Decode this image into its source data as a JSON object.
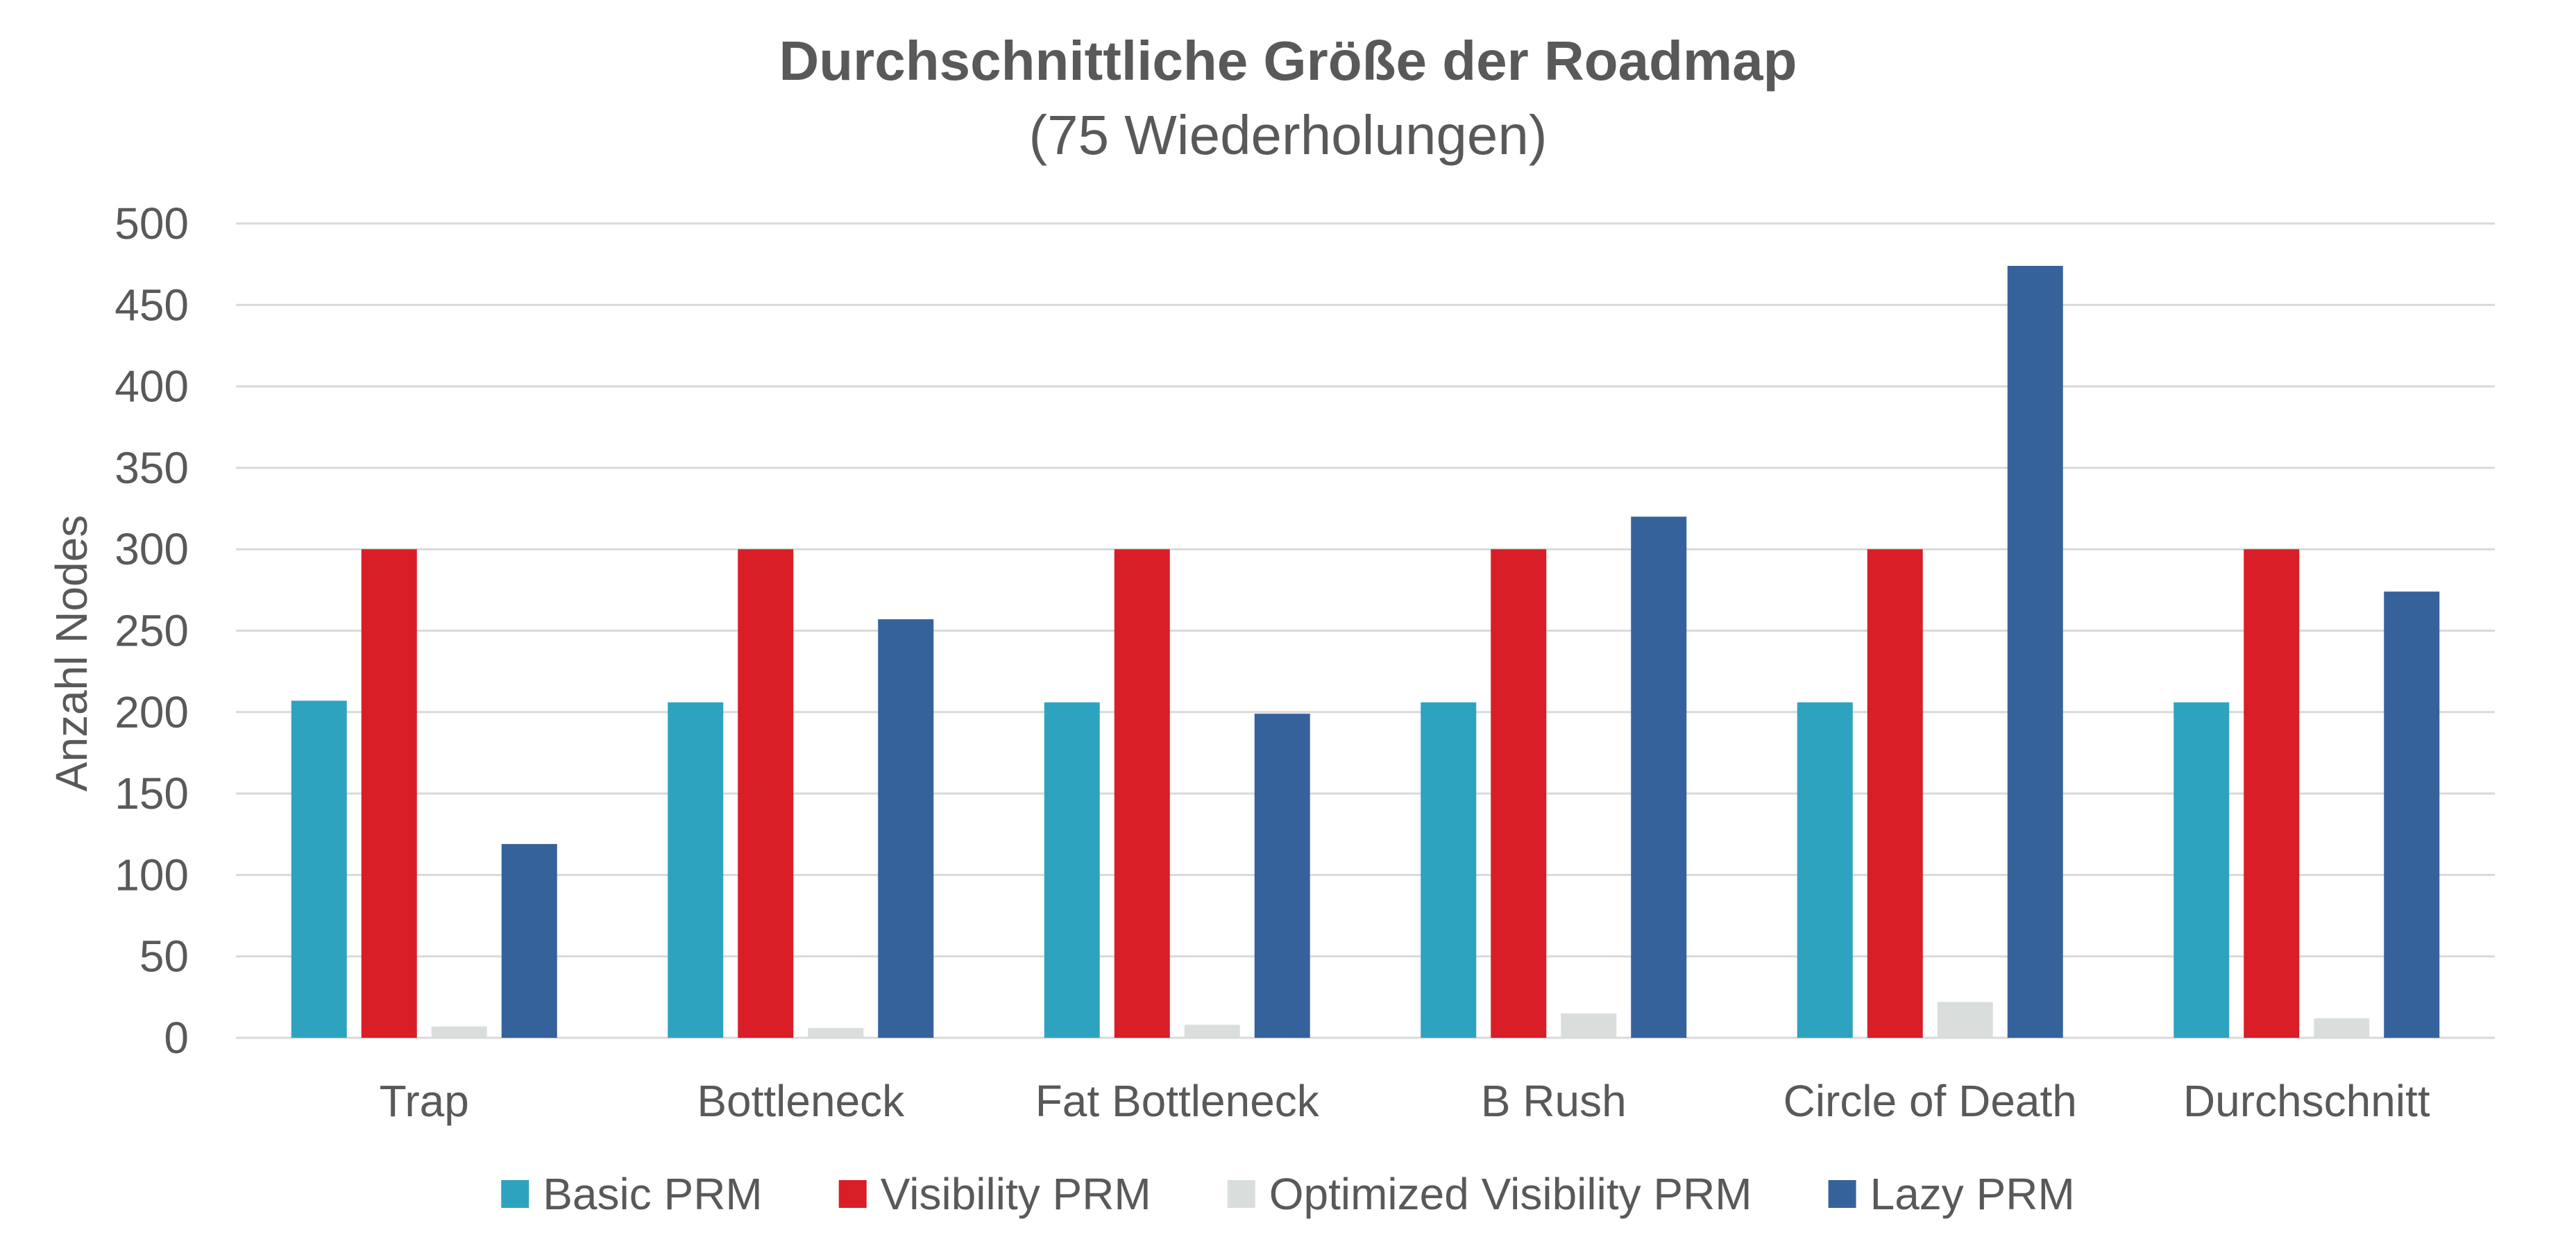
{
  "chart_data": {
    "type": "bar",
    "title": "Durchschnittliche Größe der Roadmap",
    "subtitle": "(75 Wiederholungen)",
    "xlabel": "",
    "ylabel": "Anzahl Nodes",
    "ylim": [
      0,
      500
    ],
    "yticks": [
      0,
      50,
      100,
      150,
      200,
      250,
      300,
      350,
      400,
      450,
      500
    ],
    "grid": true,
    "legend_position": "bottom",
    "categories": [
      "Trap",
      "Bottleneck",
      "Fat Bottleneck",
      "B Rush",
      "Circle of Death",
      "Durchschnitt"
    ],
    "series": [
      {
        "name": "Basic PRM",
        "color": "#2ea3c0",
        "values": [
          207,
          206,
          206,
          206,
          206,
          206
        ]
      },
      {
        "name": "Visibility PRM",
        "color": "#d91e27",
        "values": [
          300,
          300,
          300,
          300,
          300,
          300
        ]
      },
      {
        "name": "Optimized Visibility PRM",
        "color": "#d9dedd",
        "values": [
          7,
          6,
          8,
          15,
          22,
          12
        ]
      },
      {
        "name": "Lazy PRM",
        "color": "#36629b",
        "values": [
          119,
          257,
          199,
          320,
          474,
          274
        ]
      }
    ]
  }
}
